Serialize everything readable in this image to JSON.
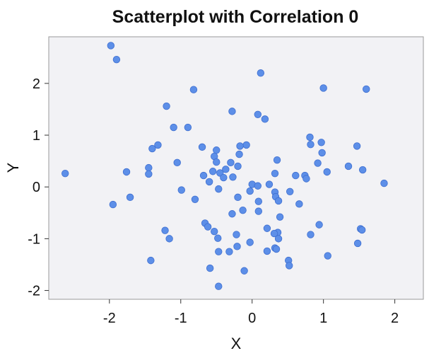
{
  "colors": {
    "point_fill": "#5d8fe8",
    "point_stroke": "#3f6fd0",
    "plot_background": "#f2f2f5",
    "frame": "#9a9a9a"
  },
  "chart_data": {
    "type": "scatter",
    "title": "Scatterplot with Correlation 0",
    "xlabel": "X",
    "ylabel": "Y",
    "xlim": [
      -2.85,
      2.4
    ],
    "ylim": [
      -2.17,
      2.9
    ],
    "xticks": [
      -2,
      -1,
      0,
      1,
      2
    ],
    "xtick_labels": [
      "-2",
      "-1",
      "0",
      "1",
      "2"
    ],
    "yticks": [
      -2,
      -1,
      0,
      1,
      2
    ],
    "ytick_labels": [
      "-2",
      "-1",
      "0",
      "1",
      "2"
    ],
    "grid": false,
    "series": [
      {
        "name": "points",
        "points": [
          [
            -1.98,
            2.73
          ],
          [
            -1.9,
            2.46
          ],
          [
            0.12,
            2.2
          ],
          [
            1.0,
            1.91
          ],
          [
            1.6,
            1.89
          ],
          [
            -0.82,
            1.88
          ],
          [
            -1.2,
            1.56
          ],
          [
            -0.28,
            1.46
          ],
          [
            0.08,
            1.4
          ],
          [
            0.18,
            1.31
          ],
          [
            -1.1,
            1.15
          ],
          [
            -0.9,
            1.15
          ],
          [
            0.81,
            0.96
          ],
          [
            0.97,
            0.86
          ],
          [
            -1.32,
            0.81
          ],
          [
            0.82,
            0.82
          ],
          [
            -0.08,
            0.81
          ],
          [
            -0.17,
            0.79
          ],
          [
            1.47,
            0.79
          ],
          [
            -0.7,
            0.77
          ],
          [
            -1.4,
            0.74
          ],
          [
            -0.5,
            0.71
          ],
          [
            0.98,
            0.66
          ],
          [
            -0.18,
            0.63
          ],
          [
            -0.53,
            0.59
          ],
          [
            0.35,
            0.52
          ],
          [
            -0.5,
            0.48
          ],
          [
            -1.05,
            0.47
          ],
          [
            -0.3,
            0.47
          ],
          [
            0.92,
            0.46
          ],
          [
            1.35,
            0.4
          ],
          [
            -0.2,
            0.4
          ],
          [
            -1.45,
            0.37
          ],
          [
            -0.37,
            0.34
          ],
          [
            1.55,
            0.33
          ],
          [
            -0.55,
            0.3
          ],
          [
            -1.76,
            0.29
          ],
          [
            1.05,
            0.29
          ],
          [
            -0.45,
            0.27
          ],
          [
            0.32,
            0.26
          ],
          [
            -2.62,
            0.26
          ],
          [
            -1.45,
            0.25
          ],
          [
            0.61,
            0.22
          ],
          [
            -0.68,
            0.22
          ],
          [
            0.74,
            0.22
          ],
          [
            -0.27,
            0.19
          ],
          [
            -0.4,
            0.18
          ],
          [
            0.76,
            0.16
          ],
          [
            -0.6,
            0.1
          ],
          [
            1.85,
            0.07
          ],
          [
            0.0,
            0.05
          ],
          [
            0.24,
            0.05
          ],
          [
            0.08,
            0.02
          ],
          [
            -0.47,
            -0.04
          ],
          [
            -0.99,
            -0.06
          ],
          [
            0.53,
            -0.09
          ],
          [
            -0.03,
            -0.08
          ],
          [
            0.32,
            -0.1
          ],
          [
            0.33,
            -0.19
          ],
          [
            -1.71,
            -0.2
          ],
          [
            -0.2,
            -0.2
          ],
          [
            -0.8,
            -0.24
          ],
          [
            0.37,
            -0.27
          ],
          [
            0.09,
            -0.28
          ],
          [
            0.66,
            -0.33
          ],
          [
            -1.95,
            -0.34
          ],
          [
            -0.13,
            -0.45
          ],
          [
            0.09,
            -0.47
          ],
          [
            -0.28,
            -0.52
          ],
          [
            0.39,
            -0.58
          ],
          [
            -0.66,
            -0.7
          ],
          [
            0.94,
            -0.73
          ],
          [
            -0.62,
            -0.77
          ],
          [
            0.21,
            -0.8
          ],
          [
            1.52,
            -0.81
          ],
          [
            1.54,
            -0.83
          ],
          [
            -1.22,
            -0.84
          ],
          [
            -0.53,
            -0.86
          ],
          [
            0.36,
            -0.88
          ],
          [
            0.31,
            -0.9
          ],
          [
            -0.22,
            -0.92
          ],
          [
            0.82,
            -0.92
          ],
          [
            -0.48,
            -0.99
          ],
          [
            -1.16,
            -1.0
          ],
          [
            0.37,
            -1.0
          ],
          [
            1.48,
            -1.09
          ],
          [
            -0.03,
            -1.07
          ],
          [
            0.32,
            -1.18
          ],
          [
            -0.21,
            -1.15
          ],
          [
            0.34,
            -1.2
          ],
          [
            0.21,
            -1.24
          ],
          [
            -0.47,
            -1.25
          ],
          [
            -0.32,
            -1.25
          ],
          [
            1.06,
            -1.33
          ],
          [
            -1.42,
            -1.42
          ],
          [
            0.51,
            -1.42
          ],
          [
            0.52,
            -1.52
          ],
          [
            -0.59,
            -1.57
          ],
          [
            -0.11,
            -1.62
          ],
          [
            -0.47,
            -1.92
          ]
        ]
      }
    ]
  }
}
